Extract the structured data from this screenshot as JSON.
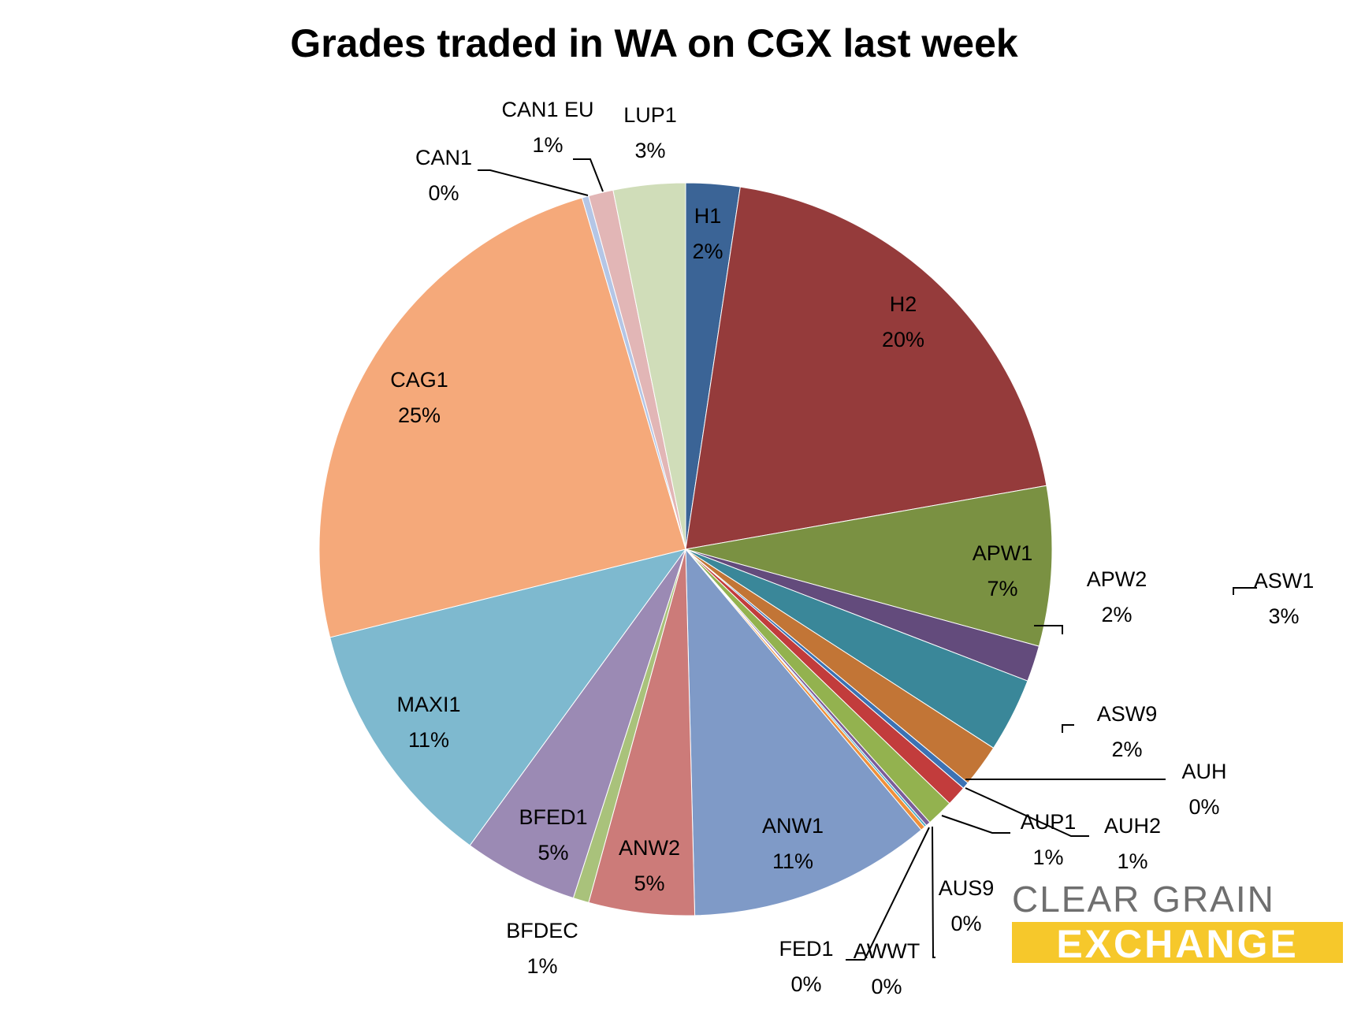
{
  "chart_data": {
    "type": "pie",
    "title": "Grades traded in WA on CGX last week",
    "slices": [
      {
        "label": "H1",
        "pct_label": "2%",
        "value": 2.4,
        "color": "#3b6496"
      },
      {
        "label": "H2",
        "pct_label": "20%",
        "value": 20.0,
        "color": "#953b3b"
      },
      {
        "label": "APW1",
        "pct_label": "7%",
        "value": 7.1,
        "color": "#7a9142"
      },
      {
        "label": "APW2",
        "pct_label": "2%",
        "value": 1.6,
        "color": "#634b7c"
      },
      {
        "label": "ASW1",
        "pct_label": "3%",
        "value": 3.3,
        "color": "#3a8799"
      },
      {
        "label": "ASW9",
        "pct_label": "2%",
        "value": 1.9,
        "color": "#c27536"
      },
      {
        "label": "AUH",
        "pct_label": "0%",
        "value": 0.3,
        "color": "#3c72b4"
      },
      {
        "label": "AUH2",
        "pct_label": "1%",
        "value": 0.9,
        "color": "#c23c3c"
      },
      {
        "label": "AUP1",
        "pct_label": "1%",
        "value": 1.2,
        "color": "#93b24f"
      },
      {
        "label": "AUS9",
        "pct_label": "0%",
        "value": 0.2,
        "color": "#7a5d9a"
      },
      {
        "label": "AWWT",
        "pct_label": "0%",
        "value": 0.1,
        "color": "#4bacc6"
      },
      {
        "label": "FED1",
        "pct_label": "0%",
        "value": 0.2,
        "color": "#f0903a"
      },
      {
        "label": "ANW1",
        "pct_label": "11%",
        "value": 10.8,
        "color": "#7f9ac7"
      },
      {
        "label": "ANW2",
        "pct_label": "5%",
        "value": 4.7,
        "color": "#cc7b79"
      },
      {
        "label": "BFDEC",
        "pct_label": "1%",
        "value": 0.7,
        "color": "#a9c27b"
      },
      {
        "label": "BFED1",
        "pct_label": "5%",
        "value": 5.1,
        "color": "#9b8ab4"
      },
      {
        "label": "MAXI1",
        "pct_label": "11%",
        "value": 11.2,
        "color": "#7eb9cf"
      },
      {
        "label": "CAG1",
        "pct_label": "25%",
        "value": 24.5,
        "color": "#f5a97a"
      },
      {
        "label": "CAN1",
        "pct_label": "0%",
        "value": 0.3,
        "color": "#b4c6e6"
      },
      {
        "label": "CAN1 EU",
        "pct_label": "1%",
        "value": 1.1,
        "color": "#e2b6b6"
      },
      {
        "label": "LUP1",
        "pct_label": "3%",
        "value": 3.2,
        "color": "#d0ddb9"
      }
    ]
  },
  "logo": {
    "line1": "CLEAR GRAIN",
    "line2": "EXCHANGE",
    "color_gray": "#6f6f6f",
    "color_yellow": "#f6c82b"
  }
}
